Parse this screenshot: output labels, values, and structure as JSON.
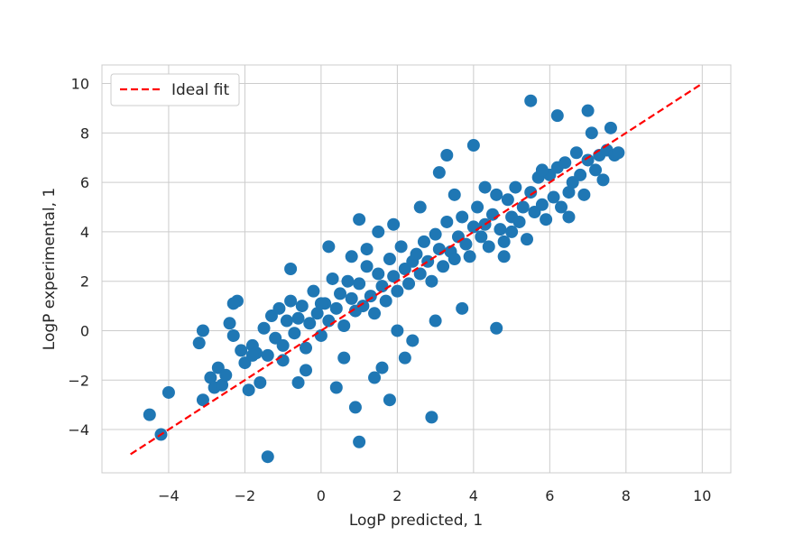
{
  "chart_data": {
    "type": "scatter",
    "xlabel": "LogP predicted, 1",
    "ylabel": "LogP experimental, 1",
    "xlim": [
      -5.75,
      10.75
    ],
    "ylim": [
      -5.75,
      10.75
    ],
    "xticks": [
      -4,
      -2,
      0,
      2,
      4,
      6,
      8,
      10
    ],
    "yticks": [
      -4,
      -2,
      0,
      2,
      4,
      6,
      8,
      10
    ],
    "xtick_labels": [
      "−4",
      "−2",
      "0",
      "2",
      "4",
      "6",
      "8",
      "10"
    ],
    "ytick_labels": [
      "−4",
      "−2",
      "0",
      "2",
      "4",
      "6",
      "8",
      "10"
    ],
    "grid": true,
    "legend": {
      "placement": "upper-left",
      "entries": [
        {
          "label": "Ideal fit",
          "style": "dashed",
          "color": "#ff0000"
        }
      ]
    },
    "ideal_fit": {
      "x": [
        -5,
        10
      ],
      "y": [
        -5,
        10
      ],
      "color": "#ff0000"
    },
    "scatter_color": "#1f77b4",
    "series": [
      {
        "x": [
          -4.5,
          -4.2,
          -4.0,
          -3.1,
          -3.2,
          -2.9,
          -2.8,
          -2.7,
          -2.6,
          -2.5,
          -2.3,
          -2.2,
          -2.1,
          -2.0,
          -1.9,
          -1.8,
          -1.7,
          -1.5,
          -1.4,
          -1.3,
          -1.2,
          -1.1,
          -1.0,
          -0.9,
          -0.8,
          -0.7,
          -0.6,
          -0.5,
          -0.4,
          -0.3,
          -0.2,
          -0.1,
          0.0,
          0.1,
          0.2,
          0.3,
          0.4,
          0.5,
          0.6,
          0.7,
          0.8,
          0.9,
          1.0,
          1.1,
          1.2,
          1.3,
          1.4,
          1.5,
          1.6,
          1.7,
          1.8,
          1.9,
          2.0,
          2.1,
          2.2,
          2.3,
          2.4,
          2.5,
          2.6,
          2.7,
          2.8,
          2.9,
          3.0,
          3.1,
          3.2,
          3.3,
          3.4,
          3.5,
          3.6,
          3.7,
          3.8,
          3.9,
          4.0,
          4.1,
          4.2,
          4.3,
          4.4,
          4.5,
          4.6,
          4.7,
          4.8,
          4.9,
          5.0,
          5.1,
          5.2,
          5.3,
          5.4,
          5.5,
          5.6,
          5.7,
          5.8,
          5.9,
          6.0,
          6.1,
          6.2,
          6.3,
          6.4,
          6.5,
          6.6,
          6.7,
          6.8,
          6.9,
          7.0,
          7.1,
          7.2,
          7.3,
          7.4,
          7.5,
          7.6,
          7.7,
          7.8,
          -1.4,
          1.0,
          0.9,
          1.8,
          2.9,
          3.7,
          4.6,
          0.2,
          1.0,
          -3.1,
          -2.3,
          -0.8,
          5.5,
          7.0,
          6.2,
          3.3,
          4.0,
          3.1,
          2.2,
          2.4,
          1.4,
          1.6,
          0.6,
          0.4,
          -0.4,
          -0.6,
          -1.6,
          -1.8,
          -2.4,
          0.8,
          1.2,
          1.5,
          1.9,
          2.6,
          3.5,
          4.3,
          5.8,
          6.5,
          5.0,
          2.0,
          3.0,
          0.0,
          -1.0,
          4.8
        ],
        "y": [
          -3.4,
          -4.2,
          -2.5,
          -2.8,
          -0.5,
          -1.9,
          -2.3,
          -1.5,
          -2.2,
          -1.8,
          -0.2,
          1.2,
          -0.8,
          -1.3,
          -2.4,
          -0.6,
          -0.9,
          0.1,
          -1.0,
          0.6,
          -0.3,
          0.9,
          -0.6,
          0.4,
          1.2,
          -0.1,
          0.5,
          1.0,
          -0.7,
          0.3,
          1.6,
          0.7,
          -0.2,
          1.1,
          0.4,
          2.1,
          0.9,
          1.5,
          0.2,
          2.0,
          1.3,
          0.8,
          1.9,
          1.0,
          2.6,
          1.4,
          0.7,
          2.3,
          1.8,
          1.2,
          2.9,
          2.2,
          1.6,
          3.4,
          2.5,
          1.9,
          2.8,
          3.1,
          2.3,
          3.6,
          2.8,
          2.0,
          3.9,
          3.3,
          2.6,
          4.4,
          3.2,
          2.9,
          3.8,
          4.6,
          3.5,
          3.0,
          4.2,
          5.0,
          3.8,
          4.3,
          3.4,
          4.7,
          5.5,
          4.1,
          3.6,
          5.3,
          4.6,
          5.8,
          4.4,
          5.0,
          3.7,
          5.6,
          4.8,
          6.2,
          5.1,
          4.5,
          6.3,
          5.4,
          6.6,
          5.0,
          6.8,
          5.6,
          6.0,
          7.2,
          6.3,
          5.5,
          6.9,
          8.0,
          6.5,
          7.1,
          6.1,
          7.3,
          8.2,
          7.1,
          7.2,
          -5.1,
          -4.5,
          -3.1,
          -2.8,
          -3.5,
          0.9,
          0.1,
          3.4,
          4.5,
          0.0,
          1.1,
          2.5,
          9.3,
          8.9,
          8.7,
          7.1,
          7.5,
          6.4,
          -1.1,
          -0.4,
          -1.9,
          -1.5,
          -1.1,
          -2.3,
          -1.6,
          -2.1,
          -2.1,
          -1.0,
          0.3,
          3.0,
          3.3,
          4.0,
          4.3,
          5.0,
          5.5,
          5.8,
          6.5,
          4.6,
          4.0,
          0.0,
          0.4,
          1.1,
          -1.2,
          3.0
        ]
      }
    ]
  }
}
